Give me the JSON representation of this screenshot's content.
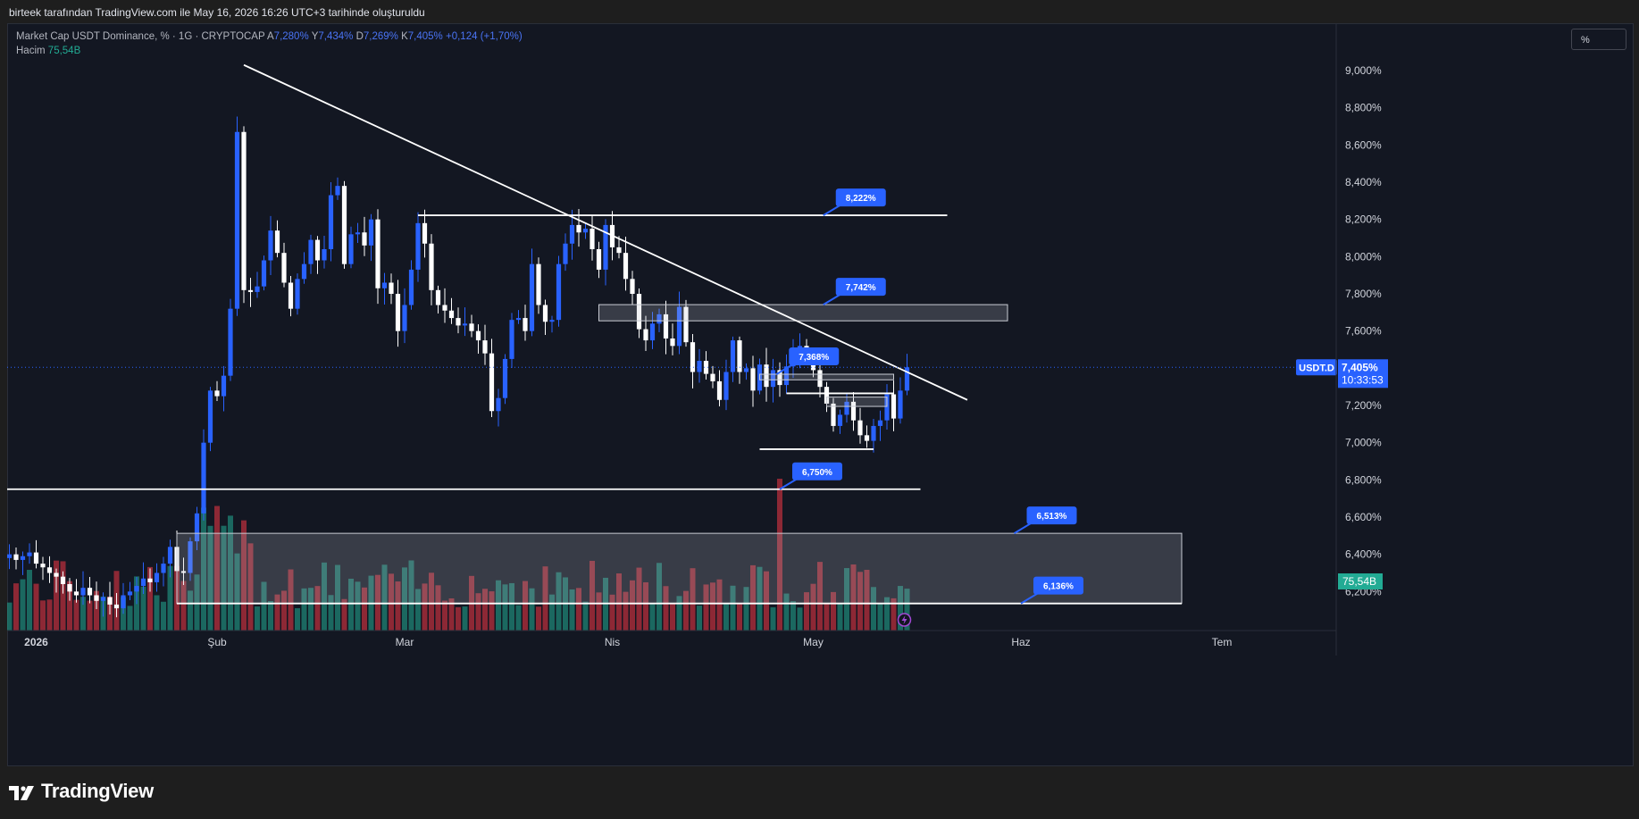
{
  "header": {
    "snapshot_text": "birteek tarafından TradingView.com ile May 16, 2026 16:26 UTC+3 tarihinde oluşturuldu"
  },
  "legend": {
    "symbol": "Market Cap USDT Dominance, % · 1G · CRYPTOCAP",
    "open_label": "A",
    "open_value": "7,280%",
    "high_label": "Y",
    "high_value": "7,434%",
    "low_label": "D",
    "low_value": "7,269%",
    "close_label": "K",
    "close_value": "7,405%",
    "change": "+0,124 (+1,70%)",
    "volume_label": "Hacim",
    "volume_value": "75,54B"
  },
  "toolbar": {
    "scale_mode": "%"
  },
  "brand": {
    "name": "TradingView"
  },
  "colors": {
    "up": "#2962ff",
    "down": "#ffffff",
    "vol_up": "#22ab94",
    "vol_down": "#f23645",
    "background": "#131722",
    "accent": "#2962ff"
  },
  "chart_data": {
    "type": "candlestick",
    "ylim": [
      6.08,
      9.15
    ],
    "y_ticks": [
      "9,000%",
      "8,800%",
      "8,600%",
      "8,400%",
      "8,200%",
      "8,000%",
      "7,800%",
      "7,600%",
      "7,400%",
      "7,200%",
      "7,000%",
      "6,800%",
      "6,600%",
      "6,400%",
      "6,200%"
    ],
    "y_tick_values": [
      9.0,
      8.8,
      8.6,
      8.4,
      8.2,
      8.0,
      7.8,
      7.6,
      7.4,
      7.2,
      7.0,
      6.8,
      6.6,
      6.4,
      6.2
    ],
    "x_labels": [
      {
        "label": "2026",
        "day": 0
      },
      {
        "label": "Şub",
        "day": 31
      },
      {
        "label": "Mar",
        "day": 59
      },
      {
        "label": "Nis",
        "day": 90
      },
      {
        "label": "May",
        "day": 120
      },
      {
        "label": "Haz",
        "day": 151
      },
      {
        "label": "Tem",
        "day": 181
      }
    ],
    "x_range_days": [
      -1,
      195
    ],
    "last_price": {
      "symbol": "USDT.D",
      "value": "7,405%",
      "countdown": "10:33:53",
      "y": 7.405
    },
    "volume_last": "75,54B",
    "closes": [
      6.4,
      6.37,
      6.39,
      6.41,
      6.35,
      6.33,
      6.3,
      6.28,
      6.24,
      6.2,
      6.18,
      6.22,
      6.18,
      6.15,
      6.17,
      6.13,
      6.11,
      6.18,
      6.2,
      6.23,
      6.27,
      6.25,
      6.3,
      6.35,
      6.44,
      6.31,
      6.3,
      6.47,
      6.62,
      7.0,
      7.28,
      7.25,
      7.36,
      7.72,
      8.67,
      7.82,
      7.81,
      7.84,
      7.98,
      8.14,
      8.02,
      7.86,
      7.72,
      7.88,
      7.96,
      8.09,
      7.98,
      8.04,
      8.33,
      8.38,
      7.96,
      8.12,
      8.13,
      8.06,
      8.2,
      7.83,
      7.86,
      7.8,
      7.6,
      7.74,
      7.93,
      8.18,
      8.07,
      7.82,
      7.74,
      7.71,
      7.67,
      7.63,
      7.64,
      7.6,
      7.55,
      7.48,
      7.17,
      7.24,
      7.45,
      7.66,
      7.67,
      7.6,
      7.96,
      7.74,
      7.65,
      7.66,
      7.96,
      8.07,
      8.17,
      8.13,
      8.15,
      8.04,
      7.93,
      8.17,
      8.05,
      8.02,
      7.88,
      7.8,
      7.61,
      7.55,
      7.64,
      7.69,
      7.56,
      7.52,
      7.73,
      7.54,
      7.38,
      7.44,
      7.37,
      7.33,
      7.23,
      7.38,
      7.55,
      7.38,
      7.4,
      7.28,
      7.42,
      7.3,
      7.39,
      7.31,
      7.41,
      7.47,
      7.52,
      7.45,
      7.39,
      7.3,
      7.21,
      7.09,
      7.15,
      7.22,
      7.12,
      7.04,
      7.01,
      7.09,
      7.12,
      7.26,
      7.13,
      7.28,
      7.405
    ],
    "annotations": {
      "trendline": [
        {
          "day": 35,
          "y": 9.03
        },
        {
          "day": 143,
          "y": 7.23
        }
      ],
      "horizontal_lines": [
        {
          "y": 8.222,
          "from_day": 61,
          "to_day": 140
        },
        {
          "y": 6.75,
          "from_day": -1,
          "to_day": 136
        },
        {
          "y": 6.136,
          "from_day": 25,
          "to_day": 175
        },
        {
          "y": 6.965,
          "from_day": 112,
          "to_day": 129
        },
        {
          "y": 7.265,
          "from_day": 116,
          "to_day": 132
        }
      ],
      "zones": [
        {
          "y_top": 7.742,
          "y_bottom": 7.655,
          "from_day": 88,
          "to_day": 149
        },
        {
          "y_top": 6.513,
          "y_bottom": 6.136,
          "from_day": 25,
          "to_day": 175
        },
        {
          "y_top": 7.368,
          "y_bottom": 7.338,
          "from_day": 112,
          "to_day": 132
        },
        {
          "y_top": 7.245,
          "y_bottom": 7.195,
          "from_day": 122,
          "to_day": 131
        }
      ],
      "price_labels": [
        {
          "text": "8,222%",
          "day": 121.5,
          "y": 8.222
        },
        {
          "text": "7,742%",
          "day": 121.5,
          "y": 7.742
        },
        {
          "text": "7,368%",
          "day": 114.5,
          "y": 7.368
        },
        {
          "text": "6,750%",
          "day": 115,
          "y": 6.75
        },
        {
          "text": "6,513%",
          "day": 150,
          "y": 6.513
        },
        {
          "text": "6,136%",
          "day": 151,
          "y": 6.136
        }
      ]
    }
  }
}
